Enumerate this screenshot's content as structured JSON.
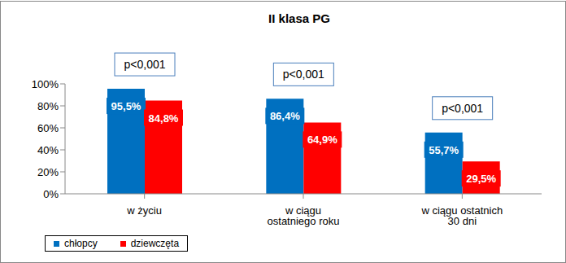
{
  "chart_data": {
    "type": "bar",
    "title": "II klasa PG",
    "categories": [
      "w życiu",
      "w ciągu ostatniego roku",
      "w ciągu ostatnich 30 dni"
    ],
    "series": [
      {
        "name": "chłopcy",
        "color": "#0070c0",
        "values": [
          95.5,
          86.4,
          55.7
        ],
        "value_labels": [
          "95,5%",
          "86,4%",
          "55,7%"
        ]
      },
      {
        "name": "dziewczęta",
        "color": "#ff0000",
        "values": [
          84.8,
          64.9,
          29.5
        ],
        "value_labels": [
          "84,8%",
          "64,9%",
          "29,5%"
        ]
      }
    ],
    "annotations": [
      "p<0,001",
      "p<0,001",
      "p<0,001"
    ],
    "ylim": [
      0,
      100
    ],
    "yticks": [
      {
        "value": 0,
        "label": "0%"
      },
      {
        "value": 20,
        "label": "20%"
      },
      {
        "value": 40,
        "label": "40%"
      },
      {
        "value": 60,
        "label": "60%"
      },
      {
        "value": 80,
        "label": "80%"
      },
      {
        "value": 100,
        "label": "100%"
      }
    ],
    "grid": false,
    "legend": "bottom",
    "data_labels": true
  }
}
